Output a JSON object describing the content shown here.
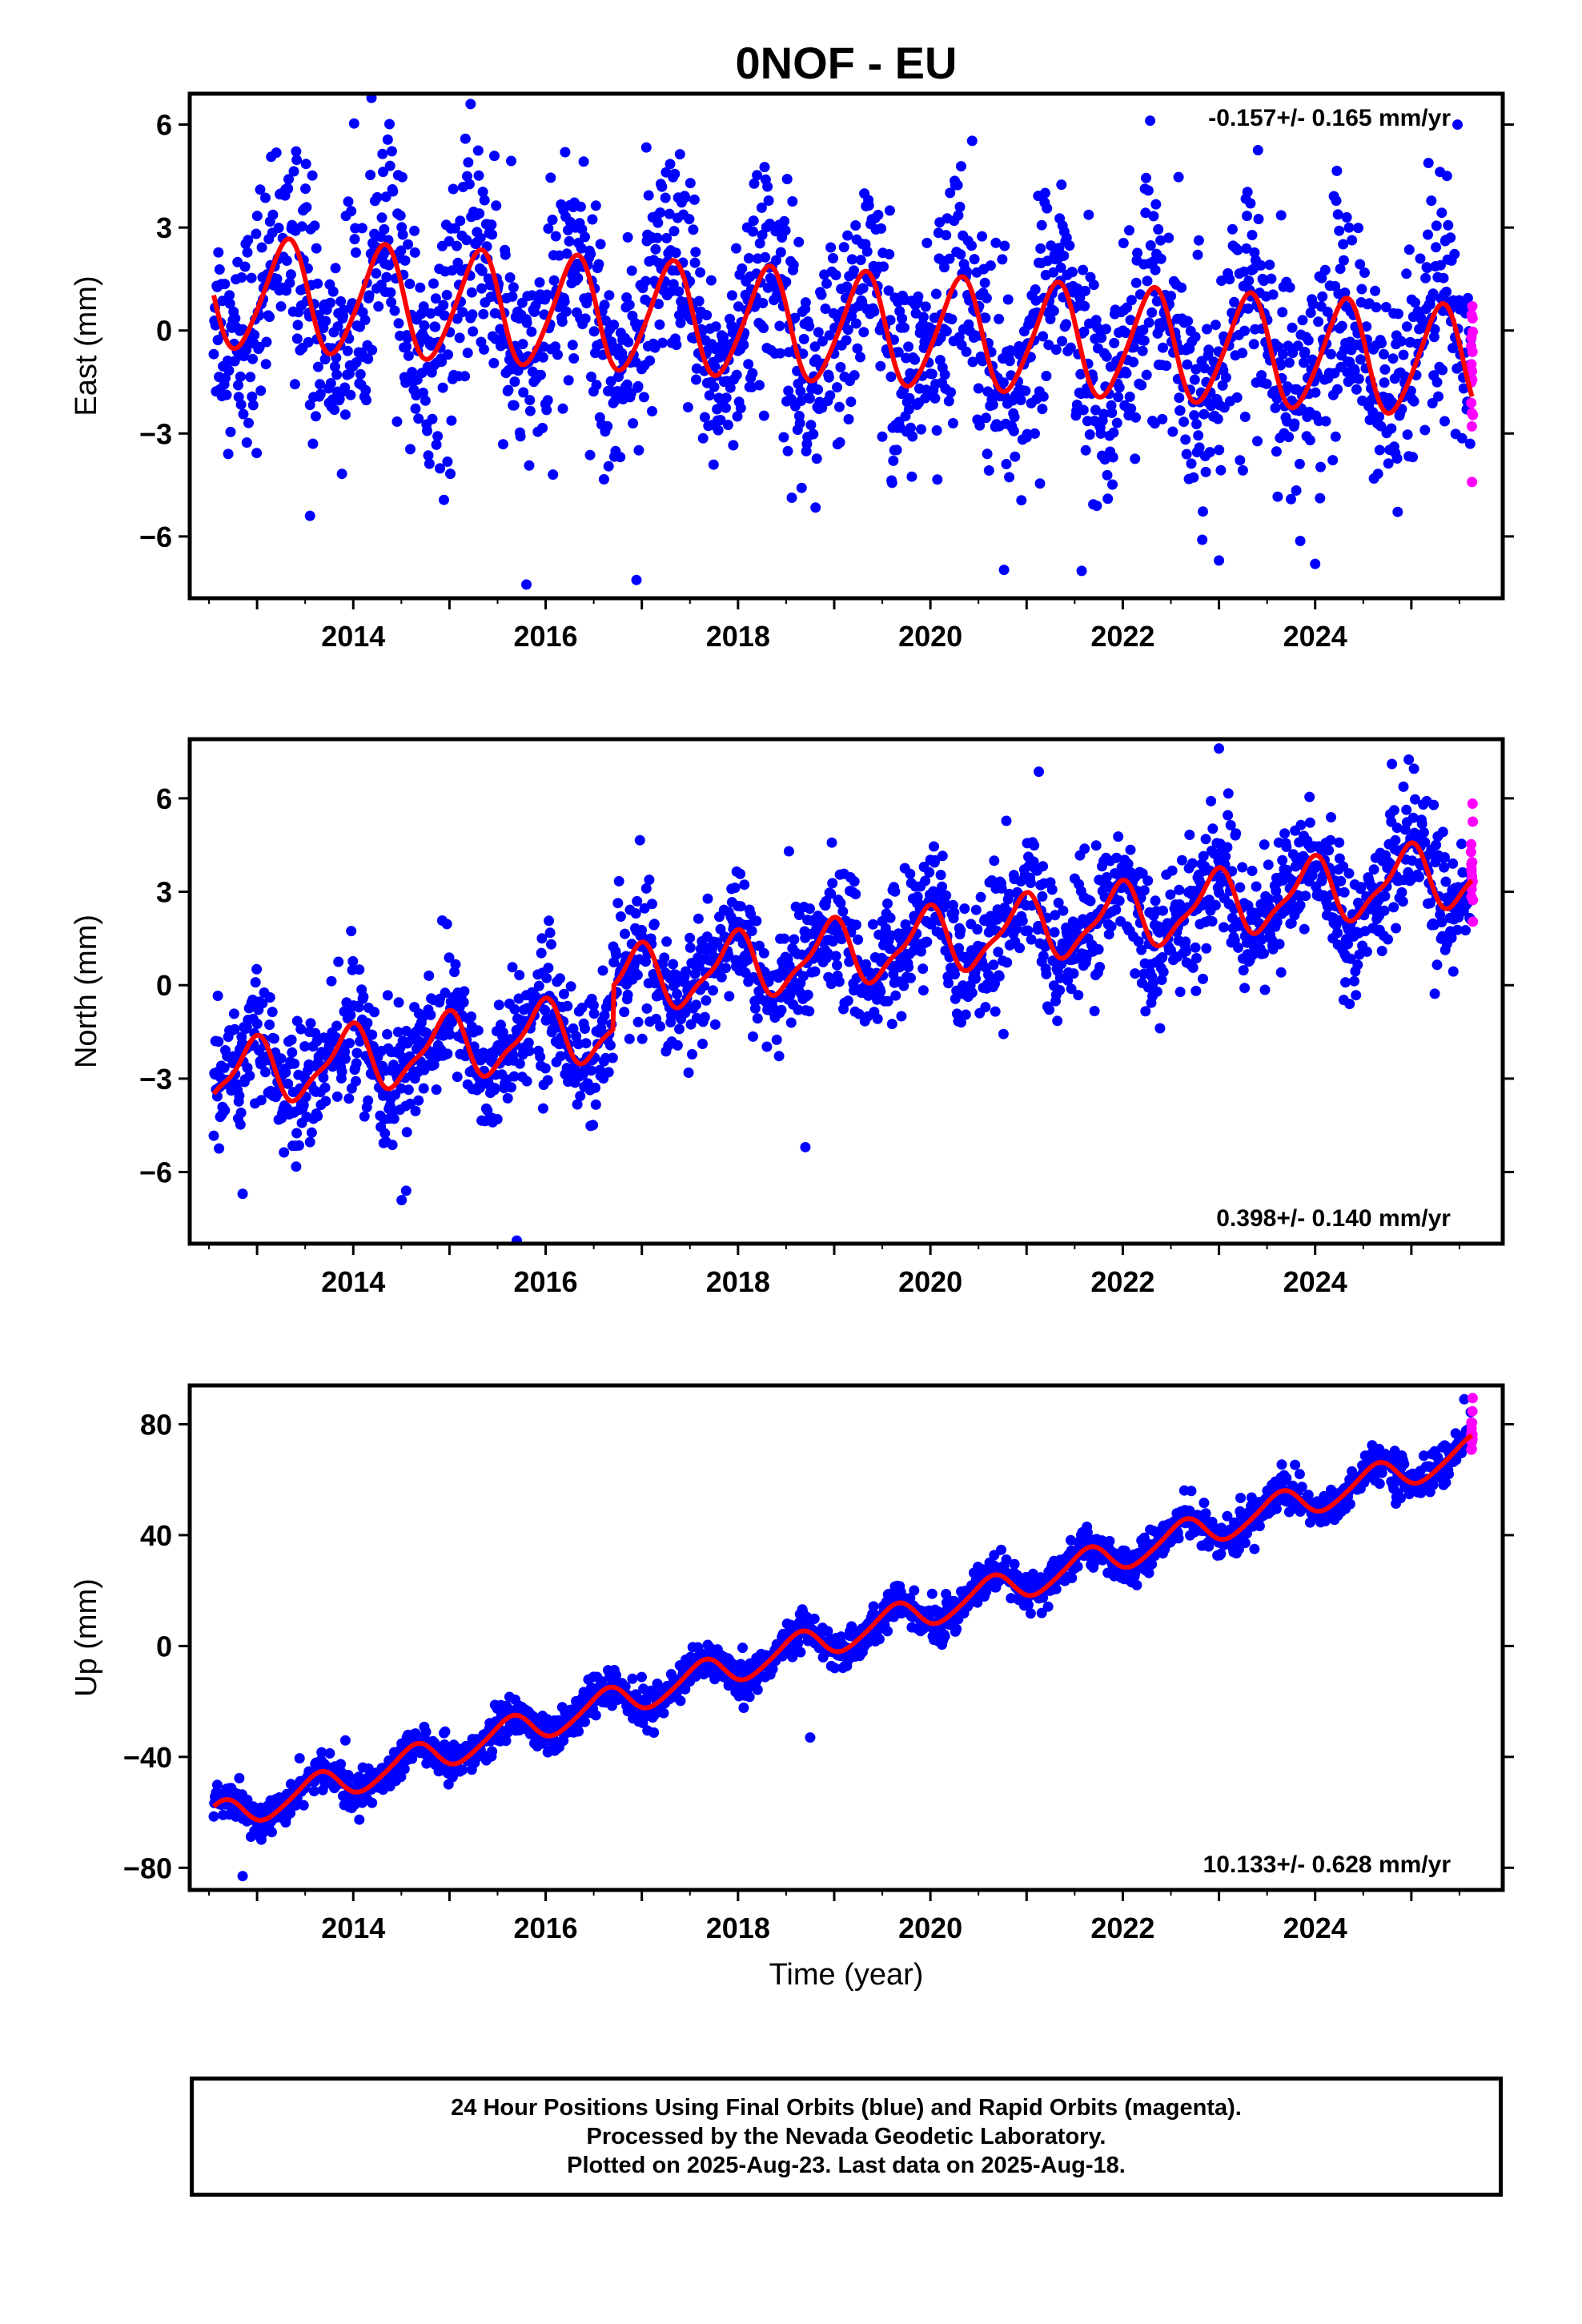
{
  "title": "0NOF - EU",
  "xlabel": "Time (year)",
  "x_ticks": [
    "2014",
    "2016",
    "2018",
    "2020",
    "2022",
    "2024"
  ],
  "footer": {
    "line1": "24 Hour Positions Using Final Orbits (blue) and Rapid Orbits (magenta).",
    "line2": "Processed by the Nevada Geodetic Laboratory.",
    "line3": "Plotted on 2025-Aug-23. Last data on 2025-Aug-18."
  },
  "colors": {
    "final_orbits": "#0000ff",
    "rapid_orbits": "#ff00ff",
    "model": "#ff0000",
    "frame": "#000000"
  },
  "chart_data": [
    {
      "type": "scatter",
      "ylabel": "East (mm)",
      "xlim": [
        2012.3,
        2025.95
      ],
      "ylim": [
        -7.8,
        6.9
      ],
      "yticks": [
        "6",
        "3",
        "0",
        "-3",
        "-6"
      ],
      "ytick_values": [
        6,
        3,
        0,
        -3,
        -6
      ],
      "rate_text": "-0.157+/- 0.165 mm/yr",
      "rate_position": "top-right",
      "data_start": 2012.55,
      "data_end": 2025.63,
      "trend": {
        "value_at_2012_5": 1.1,
        "slope_per_year": -0.157
      },
      "annual_amplitude": 1.6,
      "annual_peak_year_fraction": 0.3,
      "semiannual_amplitude": 0.2,
      "scatter_std": 1.5,
      "rapid_orbits_start": 2025.62,
      "annotated_points": [
        {
          "x": 2015.22,
          "y": 6.6
        },
        {
          "x": 2015.8,
          "y": -7.4
        },
        {
          "x": 2023.0,
          "y": -6.7
        },
        {
          "x": 2024.0,
          "y": -6.8
        },
        {
          "x": 2025.48,
          "y": 6.0
        },
        {
          "x": 2013.55,
          "y": -5.4
        }
      ]
    },
    {
      "type": "scatter",
      "ylabel": "North (mm)",
      "xlim": [
        2012.3,
        2025.95
      ],
      "ylim": [
        -8.3,
        7.9
      ],
      "yticks": [
        "6",
        "3",
        "0",
        "-3",
        "-6"
      ],
      "ytick_values": [
        6,
        3,
        0,
        -3,
        -6
      ],
      "rate_text": "0.398+/- 0.140 mm/yr",
      "rate_position": "bottom-right",
      "data_start": 2012.55,
      "data_end": 2025.63,
      "trend": {
        "value_at_2012_5": -3.0,
        "slope_per_year": 0.398
      },
      "steps": [
        {
          "x": 2016.7,
          "dy": 1.4
        }
      ],
      "annual_amplitude": 1.0,
      "annual_peak_year_fraction": 0.95,
      "semiannual_amplitude": 0.3,
      "scatter_std": 0.95,
      "rapid_orbits_start": 2025.62,
      "annotated_points": [
        {
          "x": 2015.7,
          "y": -8.2
        },
        {
          "x": 2023.0,
          "y": 7.6
        },
        {
          "x": 2018.7,
          "y": -5.2
        },
        {
          "x": 2014.55,
          "y": -6.6
        },
        {
          "x": 2012.85,
          "y": -6.7
        }
      ]
    },
    {
      "type": "scatter",
      "ylabel": "Up (mm)",
      "xlim": [
        2012.3,
        2025.95
      ],
      "ylim": [
        -88,
        94
      ],
      "yticks": [
        "80",
        "40",
        "0",
        "-40",
        "-80"
      ],
      "ytick_values": [
        80,
        40,
        0,
        -40,
        -80
      ],
      "rate_text": "10.133+/- 0.628 mm/yr",
      "rate_position": "bottom-right",
      "data_start": 2012.55,
      "data_end": 2025.63,
      "trend": {
        "value_at_2012_5": -63.0,
        "slope_per_year": 10.133
      },
      "annual_amplitude": 5.5,
      "annual_peak_year_fraction": 0.62,
      "semiannual_amplitude": 0.8,
      "scatter_std": 3.2,
      "rapid_orbits_start": 2025.62,
      "annotated_points": [
        {
          "x": 2012.85,
          "y": -83
        },
        {
          "x": 2025.55,
          "y": 89
        },
        {
          "x": 2018.75,
          "y": -33
        }
      ]
    }
  ]
}
